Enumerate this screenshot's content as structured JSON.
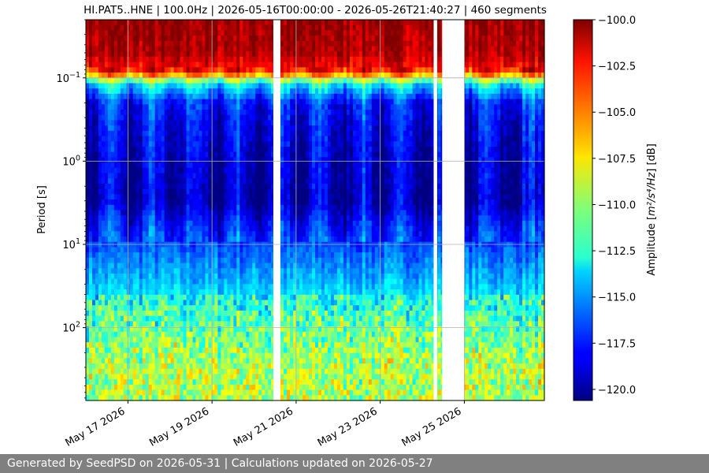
{
  "chart_data": {
    "type": "heatmap",
    "title": "HI.PAT5..HNE | 100.0Hz | 2026-05-16T00:00:00 - 2026-05-26T21:40:27 | 460 segments",
    "ylabel": "Period [s]",
    "y_scale": "log",
    "y_inverted": true,
    "ylim": [
      0.02,
      750
    ],
    "y_ticks": [
      {
        "value": 0.1,
        "base": "10",
        "exp": "−1"
      },
      {
        "value": 1,
        "base": "10",
        "exp": "0"
      },
      {
        "value": 10,
        "base": "10",
        "exp": "1"
      },
      {
        "value": 100,
        "base": "10",
        "exp": "2"
      }
    ],
    "xlim": [
      "2026-05-16T00:00:00",
      "2026-05-26T21:40:27"
    ],
    "x_ticks": [
      {
        "date": "2026-05-17",
        "label": "May 17 2026"
      },
      {
        "date": "2026-05-19",
        "label": "May 19 2026"
      },
      {
        "date": "2026-05-21",
        "label": "May 21 2026"
      },
      {
        "date": "2026-05-23",
        "label": "May 23 2026"
      },
      {
        "date": "2026-05-25",
        "label": "May 25 2026"
      }
    ],
    "grid": true,
    "colormap": "jet",
    "colorbar": {
      "label_prefix": "Amplitude [",
      "label_math": "m²/s⁴/Hz",
      "label_suffix": "] [dB]",
      "range": [
        -120.6,
        -100.0
      ],
      "ticks": [
        "−100.0",
        "−102.5",
        "−105.0",
        "−107.5",
        "−110.0",
        "−112.5",
        "−115.0",
        "−117.5",
        "−120.0"
      ],
      "tick_values": [
        -100.0,
        -102.5,
        -105.0,
        -107.5,
        -110.0,
        -112.5,
        -115.0,
        -117.5,
        -120.0
      ]
    },
    "data_gaps": [
      [
        "2026-05-20T11:00:00",
        "2026-05-20T15:00:00"
      ],
      [
        "2026-05-24T06:30:00",
        "2026-05-24T08:30:00"
      ],
      [
        "2026-05-24T11:20:00",
        "2026-05-25T00:00:00"
      ]
    ],
    "profile": [
      {
        "period": 0.02,
        "db": -100.5
      },
      {
        "period": 0.05,
        "db": -101.0
      },
      {
        "period": 0.085,
        "db": -103.0
      },
      {
        "period": 0.1,
        "db": -108.0
      },
      {
        "period": 0.12,
        "db": -113.0
      },
      {
        "period": 0.2,
        "db": -117.5
      },
      {
        "period": 0.5,
        "db": -118.5
      },
      {
        "period": 1.0,
        "db": -119.0
      },
      {
        "period": 3.0,
        "db": -119.5
      },
      {
        "period": 6.0,
        "db": -117.5
      },
      {
        "period": 10,
        "db": -116.5
      },
      {
        "period": 20,
        "db": -115.0
      },
      {
        "period": 50,
        "db": -113.0
      },
      {
        "period": 100,
        "db": -111.5
      },
      {
        "period": 300,
        "db": -110.0
      },
      {
        "period": 750,
        "db": -110.0
      }
    ]
  },
  "footer": {
    "text": "Generated by SeedPSD on 2026-05-31 | Calculations updated on 2026-05-27"
  }
}
